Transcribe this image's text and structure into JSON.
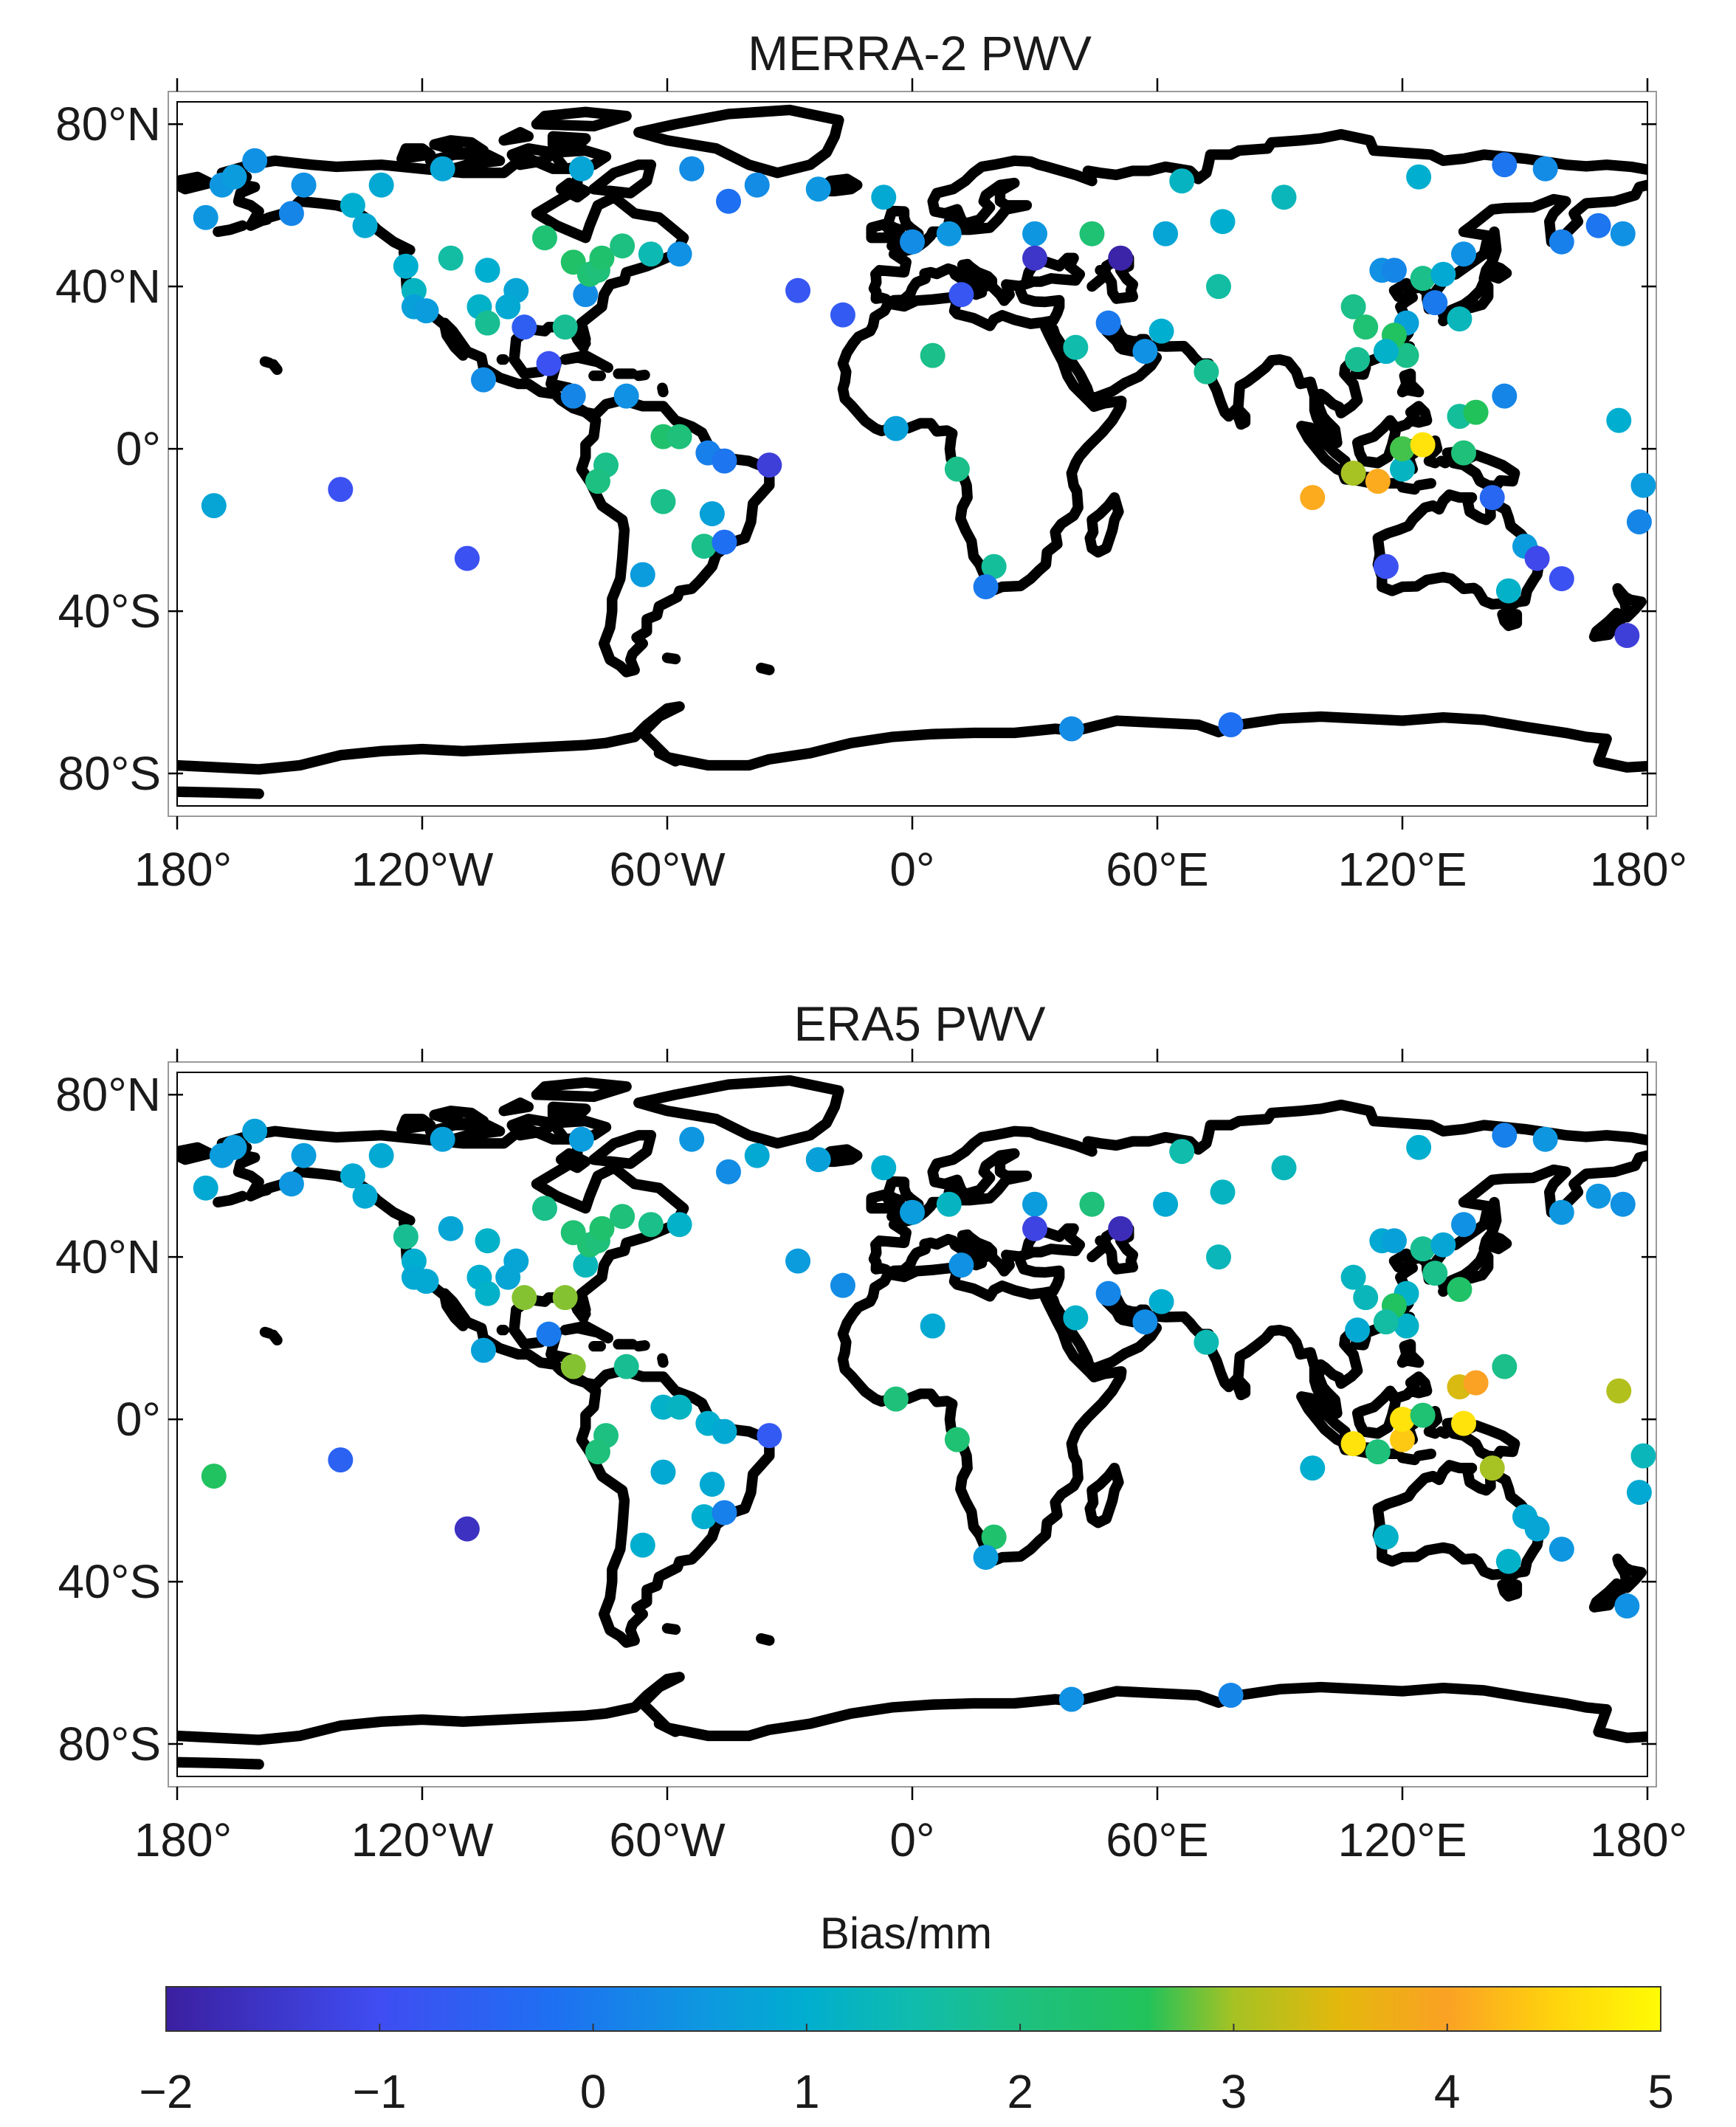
{
  "figure": {
    "panels": [
      {
        "title": "MERRA-2 PWV",
        "stations": [
          [
            -173,
            57
          ],
          [
            -169,
            65
          ],
          [
            -166,
            67
          ],
          [
            -161,
            71
          ],
          [
            -152,
            58
          ],
          [
            -149,
            65
          ],
          [
            -137,
            60
          ],
          [
            -134,
            55
          ],
          [
            -130,
            65
          ],
          [
            -124,
            45
          ],
          [
            -122,
            39
          ],
          [
            -122,
            35
          ],
          [
            -119,
            34
          ],
          [
            -115,
            69
          ],
          [
            -113,
            47
          ],
          [
            -106,
            35
          ],
          [
            -104,
            31
          ],
          [
            -104,
            44
          ],
          [
            -97,
            39
          ],
          [
            -99,
            35
          ],
          [
            -95,
            30
          ],
          [
            -90,
            52
          ],
          [
            -89,
            21
          ],
          [
            -85,
            30
          ],
          [
            -83,
            46
          ],
          [
            -81,
            69
          ],
          [
            -80,
            38
          ],
          [
            -79,
            43
          ],
          [
            -77,
            44
          ],
          [
            -76,
            47
          ],
          [
            -71,
            50
          ],
          [
            -64,
            48
          ],
          [
            -57,
            48
          ],
          [
            -54,
            69
          ],
          [
            -45,
            61
          ],
          [
            -38,
            65
          ],
          [
            -23,
            64
          ],
          [
            -105,
            17
          ],
          [
            -83,
            13
          ],
          [
            -70,
            13
          ],
          [
            -75,
            -4
          ],
          [
            -77,
            -8
          ],
          [
            -61,
            3
          ],
          [
            -57,
            3
          ],
          [
            -50,
            -1
          ],
          [
            -46,
            -3
          ],
          [
            -35,
            -4
          ],
          [
            -61,
            -13
          ],
          [
            -49,
            -16
          ],
          [
            -51,
            -24
          ],
          [
            -46,
            -23
          ],
          [
            -66,
            -31
          ],
          [
            -171,
            -14
          ],
          [
            -140,
            -10
          ],
          [
            -109,
            -27
          ],
          [
            -28,
            39
          ],
          [
            -17,
            33
          ],
          [
            -7,
            62
          ],
          [
            0,
            51
          ],
          [
            9,
            53
          ],
          [
            12,
            38
          ],
          [
            5,
            23
          ],
          [
            -4,
            5
          ],
          [
            11,
            -5
          ],
          [
            20,
            -29
          ],
          [
            18,
            -34
          ],
          [
            30,
            53
          ],
          [
            30,
            47
          ],
          [
            44,
            53
          ],
          [
            51,
            47
          ],
          [
            48,
            31
          ],
          [
            57,
            24
          ],
          [
            62,
            53
          ],
          [
            66,
            66
          ],
          [
            76,
            56
          ],
          [
            75,
            40
          ],
          [
            91,
            62
          ],
          [
            61,
            29
          ],
          [
            72,
            19
          ],
          [
            40,
            25
          ],
          [
            124,
            67
          ],
          [
            145,
            70
          ],
          [
            155,
            69
          ],
          [
            159,
            51
          ],
          [
            168,
            55
          ],
          [
            174,
            53
          ],
          [
            108,
            35
          ],
          [
            111,
            30
          ],
          [
            115,
            44
          ],
          [
            118,
            44
          ],
          [
            121,
            31
          ],
          [
            121,
            23
          ],
          [
            118,
            28
          ],
          [
            116,
            24
          ],
          [
            109,
            22
          ],
          [
            125,
            42
          ],
          [
            130,
            43
          ],
          [
            135,
            48
          ],
          [
            128,
            36
          ],
          [
            134,
            32
          ],
          [
            145,
            13
          ],
          [
            173,
            7
          ],
          [
            134,
            8
          ],
          [
            138,
            9
          ],
          [
            108,
            -6
          ],
          [
            114,
            -8
          ],
          [
            120,
            -5
          ],
          [
            120,
            0
          ],
          [
            125,
            1
          ],
          [
            135,
            -1
          ],
          [
            98,
            -12
          ],
          [
            116,
            -29
          ],
          [
            142,
            -12
          ],
          [
            146,
            -35
          ],
          [
            150,
            -24
          ],
          [
            153,
            -27
          ],
          [
            159,
            -32
          ],
          [
            175,
            -46
          ],
          [
            178,
            -18
          ],
          [
            179,
            -9
          ],
          [
            39,
            -69
          ],
          [
            78,
            -68
          ]
        ],
        "values": [
          0.5,
          0.5,
          0.6,
          0.4,
          0.2,
          0.4,
          1.0,
          0.9,
          0.9,
          1.0,
          1.2,
          0.7,
          0.6,
          0.8,
          1.6,
          1.1,
          1.8,
          1.0,
          0.8,
          0.9,
          -0.6,
          2.2,
          -0.9,
          1.8,
          2.4,
          0.8,
          0.3,
          2.2,
          2.1,
          2.3,
          2.0,
          1.4,
          0.4,
          0.3,
          -0.2,
          0.3,
          0.5,
          0.3,
          0.2,
          0.4,
          1.9,
          2.0,
          2.3,
          2.1,
          0.1,
          -0.1,
          -1.3,
          1.9,
          0.7,
          1.9,
          -0.2,
          0.6,
          0.8,
          -0.9,
          -0.9,
          -0.8,
          -0.7,
          0.9,
          0.3,
          0.5,
          -0.8,
          1.9,
          0.7,
          1.9,
          1.7,
          0.0,
          0.5,
          -1.5,
          2.2,
          -1.9,
          0.0,
          0.4,
          0.8,
          1.2,
          1.0,
          1.6,
          1.3,
          1.0,
          1.8,
          1.5,
          1.0,
          -0.1,
          0.3,
          0.1,
          -0.1,
          0.4,
          1.9,
          2.2,
          0.4,
          0.2,
          0.7,
          1.9,
          2.5,
          1.1,
          1.8,
          1.9,
          0.9,
          0.4,
          0.0,
          1.3,
          0.2,
          1.0,
          1.7,
          2.6,
          3.0,
          4.1,
          1.2,
          2.7,
          4.7,
          2.1,
          4.1,
          -0.9,
          -0.4,
          1.1,
          0.6,
          -1.1,
          -0.9,
          -1.3,
          0.2,
          0.6,
          0.3,
          -0.2,
          -0.1
        ]
      },
      {
        "title": "ERA5 PWV",
        "stations": [
          [
            -173,
            57
          ],
          [
            -169,
            65
          ],
          [
            -166,
            67
          ],
          [
            -161,
            71
          ],
          [
            -152,
            58
          ],
          [
            -149,
            65
          ],
          [
            -137,
            60
          ],
          [
            -134,
            55
          ],
          [
            -130,
            65
          ],
          [
            -124,
            45
          ],
          [
            -122,
            39
          ],
          [
            -122,
            35
          ],
          [
            -119,
            34
          ],
          [
            -115,
            69
          ],
          [
            -113,
            47
          ],
          [
            -106,
            35
          ],
          [
            -104,
            31
          ],
          [
            -104,
            44
          ],
          [
            -97,
            39
          ],
          [
            -99,
            35
          ],
          [
            -95,
            30
          ],
          [
            -90,
            52
          ],
          [
            -89,
            21
          ],
          [
            -85,
            30
          ],
          [
            -83,
            46
          ],
          [
            -81,
            69
          ],
          [
            -80,
            38
          ],
          [
            -79,
            43
          ],
          [
            -77,
            44
          ],
          [
            -76,
            47
          ],
          [
            -71,
            50
          ],
          [
            -64,
            48
          ],
          [
            -57,
            48
          ],
          [
            -54,
            69
          ],
          [
            -45,
            61
          ],
          [
            -38,
            65
          ],
          [
            -23,
            64
          ],
          [
            -105,
            17
          ],
          [
            -83,
            13
          ],
          [
            -70,
            13
          ],
          [
            -75,
            -4
          ],
          [
            -77,
            -8
          ],
          [
            -61,
            3
          ],
          [
            -57,
            3
          ],
          [
            -50,
            -1
          ],
          [
            -46,
            -3
          ],
          [
            -35,
            -4
          ],
          [
            -61,
            -13
          ],
          [
            -49,
            -16
          ],
          [
            -51,
            -24
          ],
          [
            -46,
            -23
          ],
          [
            -66,
            -31
          ],
          [
            -171,
            -14
          ],
          [
            -140,
            -10
          ],
          [
            -109,
            -27
          ],
          [
            -28,
            39
          ],
          [
            -17,
            33
          ],
          [
            -7,
            62
          ],
          [
            0,
            51
          ],
          [
            9,
            53
          ],
          [
            12,
            38
          ],
          [
            5,
            23
          ],
          [
            -4,
            5
          ],
          [
            11,
            -5
          ],
          [
            20,
            -29
          ],
          [
            18,
            -34
          ],
          [
            30,
            53
          ],
          [
            30,
            47
          ],
          [
            44,
            53
          ],
          [
            51,
            47
          ],
          [
            48,
            31
          ],
          [
            57,
            24
          ],
          [
            62,
            53
          ],
          [
            66,
            66
          ],
          [
            76,
            56
          ],
          [
            75,
            40
          ],
          [
            91,
            62
          ],
          [
            61,
            29
          ],
          [
            72,
            19
          ],
          [
            40,
            25
          ],
          [
            124,
            67
          ],
          [
            145,
            70
          ],
          [
            155,
            69
          ],
          [
            159,
            51
          ],
          [
            168,
            55
          ],
          [
            174,
            53
          ],
          [
            108,
            35
          ],
          [
            111,
            30
          ],
          [
            115,
            44
          ],
          [
            118,
            44
          ],
          [
            121,
            31
          ],
          [
            121,
            23
          ],
          [
            118,
            28
          ],
          [
            116,
            24
          ],
          [
            109,
            22
          ],
          [
            125,
            42
          ],
          [
            130,
            43
          ],
          [
            135,
            48
          ],
          [
            128,
            36
          ],
          [
            134,
            32
          ],
          [
            145,
            13
          ],
          [
            173,
            7
          ],
          [
            134,
            8
          ],
          [
            138,
            9
          ],
          [
            108,
            -6
          ],
          [
            114,
            -8
          ],
          [
            120,
            -5
          ],
          [
            120,
            0
          ],
          [
            125,
            1
          ],
          [
            135,
            -1
          ],
          [
            98,
            -12
          ],
          [
            116,
            -29
          ],
          [
            142,
            -12
          ],
          [
            146,
            -35
          ],
          [
            150,
            -24
          ],
          [
            153,
            -27
          ],
          [
            159,
            -32
          ],
          [
            175,
            -46
          ],
          [
            178,
            -18
          ],
          [
            179,
            -9
          ],
          [
            39,
            -69
          ],
          [
            78,
            -68
          ]
        ],
        "values": [
          0.9,
          0.6,
          0.6,
          0.7,
          0.5,
          0.6,
          0.9,
          0.9,
          0.9,
          1.8,
          1.0,
          0.9,
          0.9,
          0.7,
          0.8,
          1.0,
          1.1,
          1.1,
          0.8,
          0.8,
          2.9,
          1.9,
          0.0,
          2.9,
          2.2,
          0.6,
          1.3,
          2.2,
          2.1,
          2.3,
          2.1,
          1.9,
          1.1,
          0.5,
          0.3,
          0.9,
          0.7,
          0.7,
          2.9,
          1.8,
          2.0,
          2.1,
          1.1,
          1.2,
          1.0,
          0.9,
          -0.7,
          0.9,
          0.9,
          1.0,
          0.1,
          1.0,
          2.5,
          -0.5,
          -1.6,
          0.6,
          0.3,
          1.0,
          0.6,
          1.2,
          0.4,
          0.9,
          2.1,
          2.2,
          2.3,
          0.6,
          0.6,
          -1.2,
          2.1,
          -1.7,
          0.2,
          0.3,
          0.9,
          1.5,
          1.2,
          1.3,
          1.3,
          1.0,
          1.4,
          1.1,
          1.0,
          0.1,
          0.5,
          0.5,
          0.5,
          0.4,
          1.2,
          1.3,
          0.9,
          0.7,
          1.1,
          1.1,
          2.5,
          1.6,
          0.9,
          1.8,
          0.8,
          0.4,
          1.9,
          2.4,
          1.9,
          3.1,
          3.4,
          4.0,
          4.7,
          2.1,
          4.4,
          4.7,
          2.2,
          4.7,
          1.0,
          1.1,
          3.0,
          1.1,
          0.9,
          0.8,
          0.5,
          0.4,
          0.9,
          1.3,
          0.4,
          0.2,
          0.2
        ]
      }
    ],
    "lon_ticks": [
      "180°",
      "120°W",
      "60°W",
      "0°",
      "60°E",
      "120°E",
      "180°"
    ],
    "lat_ticks": [
      "80°N",
      "40°N",
      "0°",
      "40°S",
      "80°S"
    ],
    "colorbar": {
      "label": "Bias/mm",
      "min": -2,
      "max": 5,
      "ticks": [
        "−2",
        "−1",
        "0",
        "1",
        "2",
        "3",
        "4",
        "5"
      ],
      "stops": [
        [
          -2.0,
          "#3b1fa0"
        ],
        [
          -1.0,
          "#3f4df2"
        ],
        [
          -0.2,
          "#1f6ff2"
        ],
        [
          0.5,
          "#0e97e0"
        ],
        [
          1.0,
          "#00aecf"
        ],
        [
          1.5,
          "#10bcac"
        ],
        [
          2.0,
          "#1dc080"
        ],
        [
          2.6,
          "#22c25a"
        ],
        [
          3.0,
          "#a6c223"
        ],
        [
          3.5,
          "#e4b80c"
        ],
        [
          4.0,
          "#fba124"
        ],
        [
          4.5,
          "#ffd30d"
        ],
        [
          5.0,
          "#fffb05"
        ]
      ]
    }
  }
}
